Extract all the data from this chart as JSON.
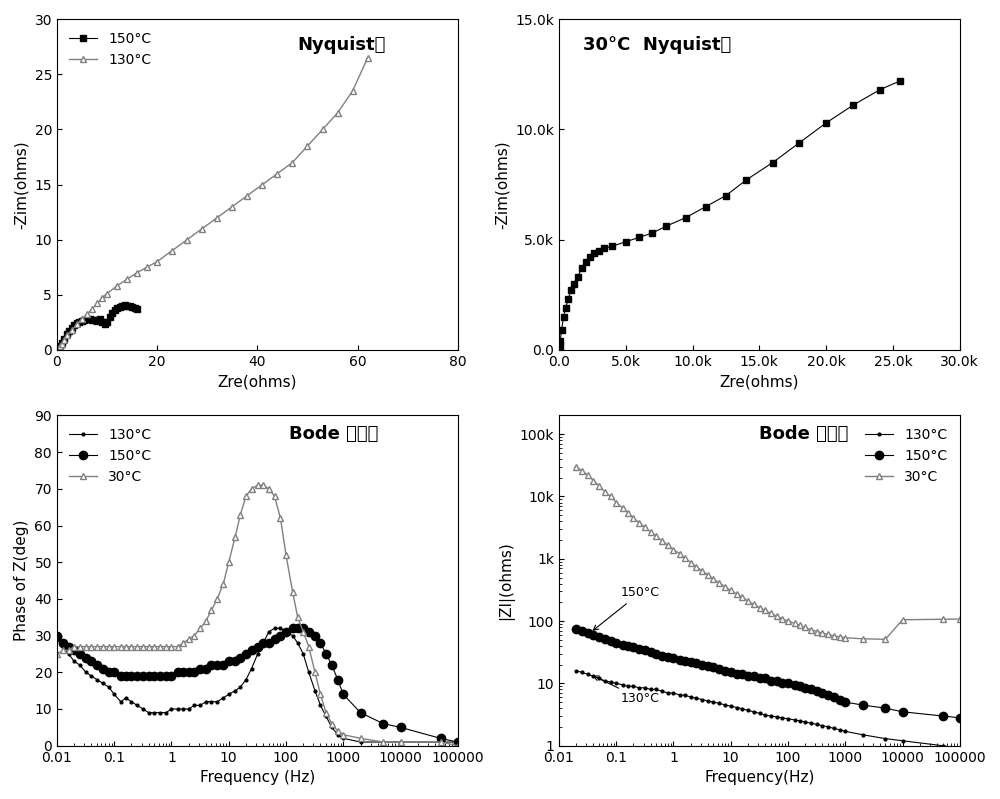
{
  "plot1": {
    "title": "Nyquist图",
    "xlabel": "Zre(ohms)",
    "ylabel": "-Zim(ohms)",
    "xlim": [
      0,
      80
    ],
    "ylim": [
      0,
      30
    ],
    "legend_150": "150°C",
    "legend_130": "130°C",
    "data_150_zre": [
      0.3,
      0.6,
      1.0,
      1.5,
      2.0,
      2.5,
      3.0,
      3.5,
      4.0,
      4.5,
      5.0,
      5.5,
      6.0,
      6.5,
      7.0,
      7.5,
      8.0,
      8.5,
      9.0,
      9.5,
      10.0,
      10.5,
      11.0,
      11.5,
      12.0,
      12.5,
      13.0,
      13.5,
      14.0,
      14.5,
      15.0,
      15.5,
      16.0
    ],
    "data_150_zim": [
      0.1,
      0.3,
      0.6,
      1.0,
      1.4,
      1.7,
      2.0,
      2.2,
      2.4,
      2.5,
      2.6,
      2.7,
      2.8,
      2.8,
      2.7,
      2.7,
      2.6,
      2.8,
      2.5,
      2.3,
      2.5,
      3.0,
      3.3,
      3.6,
      3.8,
      3.9,
      4.0,
      4.1,
      4.0,
      4.0,
      3.9,
      3.8,
      3.7
    ],
    "data_130_zre": [
      0.3,
      0.6,
      1.0,
      1.5,
      2.0,
      3.0,
      4.0,
      5.0,
      6.0,
      7.0,
      8.0,
      9.0,
      10.0,
      12.0,
      14.0,
      16.0,
      18.0,
      20.0,
      23.0,
      26.0,
      29.0,
      32.0,
      35.0,
      38.0,
      41.0,
      44.0,
      47.0,
      50.0,
      53.0,
      56.0,
      59.0,
      62.0
    ],
    "data_130_zim": [
      0.1,
      0.3,
      0.5,
      0.9,
      1.3,
      1.8,
      2.3,
      2.8,
      3.2,
      3.7,
      4.2,
      4.7,
      5.1,
      5.8,
      6.4,
      7.0,
      7.5,
      8.0,
      9.0,
      10.0,
      11.0,
      12.0,
      13.0,
      14.0,
      15.0,
      16.0,
      17.0,
      18.5,
      20.0,
      21.5,
      23.5,
      26.5
    ]
  },
  "plot2": {
    "title": "30°C  Nyquist图",
    "xlabel": "Zre(ohms)",
    "ylabel": "-Zim(ohms)",
    "xlim": [
      0,
      30000
    ],
    "ylim": [
      0,
      15000
    ],
    "data_zre": [
      30,
      60,
      100,
      200,
      350,
      500,
      700,
      900,
      1100,
      1400,
      1700,
      2000,
      2300,
      2600,
      3000,
      3400,
      4000,
      5000,
      6000,
      7000,
      8000,
      9500,
      11000,
      12500,
      14000,
      16000,
      18000,
      20000,
      22000,
      24000,
      25500
    ],
    "data_zim": [
      50,
      150,
      400,
      900,
      1500,
      1900,
      2300,
      2700,
      3000,
      3300,
      3700,
      4000,
      4200,
      4400,
      4500,
      4600,
      4700,
      4900,
      5100,
      5300,
      5600,
      6000,
      6500,
      7000,
      7700,
      8500,
      9400,
      10300,
      11100,
      11800,
      12200
    ]
  },
  "plot3": {
    "title": "Bode 相位图",
    "xlabel": "Frequency (Hz)",
    "ylabel": "Phase of Z(deg)",
    "ylim": [
      0,
      90
    ],
    "yticks": [
      0,
      10,
      20,
      30,
      40,
      50,
      60,
      70,
      80,
      90
    ],
    "xtick_labels": [
      "0.01",
      "0.1",
      "1",
      "10",
      "100",
      "1000",
      "10000",
      "100000"
    ],
    "xtick_vals": [
      0.01,
      0.1,
      1,
      10,
      100,
      1000,
      10000,
      100000
    ],
    "legend_130": "130°C",
    "legend_150": "150°C",
    "legend_30": "30°C",
    "freq_130": [
      0.01,
      0.013,
      0.016,
      0.02,
      0.025,
      0.032,
      0.04,
      0.05,
      0.063,
      0.08,
      0.1,
      0.13,
      0.16,
      0.2,
      0.25,
      0.32,
      0.4,
      0.5,
      0.63,
      0.8,
      1.0,
      1.3,
      1.6,
      2.0,
      2.5,
      3.2,
      4.0,
      5.0,
      6.3,
      8.0,
      10,
      13,
      16,
      20,
      25,
      32,
      40,
      50,
      63,
      80,
      100,
      130,
      160,
      200,
      250,
      320,
      400,
      500,
      630,
      800,
      1000,
      2000,
      5000,
      10000,
      50000,
      100000
    ],
    "phase_130": [
      29,
      27,
      25,
      23,
      22,
      20,
      19,
      18,
      17,
      16,
      14,
      12,
      13,
      12,
      11,
      10,
      9,
      9,
      9,
      9,
      10,
      10,
      10,
      10,
      11,
      11,
      12,
      12,
      12,
      13,
      14,
      15,
      16,
      18,
      21,
      25,
      28,
      31,
      32,
      32,
      31,
      30,
      28,
      25,
      20,
      15,
      11,
      8,
      5,
      3,
      2,
      1,
      1,
      1,
      1,
      1
    ],
    "freq_150": [
      0.01,
      0.013,
      0.016,
      0.02,
      0.025,
      0.032,
      0.04,
      0.05,
      0.063,
      0.08,
      0.1,
      0.13,
      0.16,
      0.2,
      0.25,
      0.32,
      0.4,
      0.5,
      0.63,
      0.8,
      1.0,
      1.3,
      1.6,
      2.0,
      2.5,
      3.2,
      4.0,
      5.0,
      6.3,
      8.0,
      10,
      13,
      16,
      20,
      25,
      32,
      40,
      50,
      63,
      80,
      100,
      130,
      160,
      200,
      250,
      320,
      400,
      500,
      630,
      800,
      1000,
      2000,
      5000,
      10000,
      50000,
      100000
    ],
    "phase_150": [
      30,
      28,
      27,
      26,
      25,
      24,
      23,
      22,
      21,
      20,
      20,
      19,
      19,
      19,
      19,
      19,
      19,
      19,
      19,
      19,
      19,
      20,
      20,
      20,
      20,
      21,
      21,
      22,
      22,
      22,
      23,
      23,
      24,
      25,
      26,
      27,
      28,
      28,
      29,
      30,
      31,
      32,
      32,
      32,
      31,
      30,
      28,
      25,
      22,
      18,
      14,
      9,
      6,
      5,
      2,
      1
    ],
    "freq_30": [
      0.01,
      0.013,
      0.016,
      0.02,
      0.025,
      0.032,
      0.04,
      0.05,
      0.063,
      0.08,
      0.1,
      0.13,
      0.16,
      0.2,
      0.25,
      0.32,
      0.4,
      0.5,
      0.63,
      0.8,
      1.0,
      1.3,
      1.6,
      2.0,
      2.5,
      3.2,
      4.0,
      5.0,
      6.3,
      8.0,
      10,
      13,
      16,
      20,
      25,
      32,
      40,
      50,
      63,
      80,
      100,
      130,
      160,
      200,
      250,
      320,
      400,
      500,
      630,
      800,
      1000,
      2000,
      5000,
      10000,
      50000,
      100000
    ],
    "phase_30": [
      25,
      26,
      26,
      27,
      27,
      27,
      27,
      27,
      27,
      27,
      27,
      27,
      27,
      27,
      27,
      27,
      27,
      27,
      27,
      27,
      27,
      27,
      28,
      29,
      30,
      32,
      34,
      37,
      40,
      44,
      50,
      57,
      63,
      68,
      70,
      71,
      71,
      70,
      68,
      62,
      52,
      42,
      35,
      31,
      27,
      20,
      14,
      9,
      6,
      4,
      3,
      2,
      1,
      1,
      1,
      0
    ]
  },
  "plot4": {
    "title": "Bode 模值图",
    "xlabel": "Frequency(Hz)",
    "ylabel": "|ZI|(ohms)",
    "legend_130": "130°C",
    "legend_150": "150°C",
    "legend_30": "30°C",
    "annotation_150": "150°C",
    "annotation_130": "130°C",
    "freq_130": [
      0.02,
      0.025,
      0.032,
      0.04,
      0.05,
      0.063,
      0.08,
      0.1,
      0.13,
      0.16,
      0.2,
      0.25,
      0.32,
      0.4,
      0.5,
      0.63,
      0.8,
      1.0,
      1.3,
      1.6,
      2.0,
      2.5,
      3.2,
      4.0,
      5.0,
      6.3,
      8.0,
      10,
      13,
      16,
      20,
      25,
      32,
      40,
      50,
      63,
      80,
      100,
      130,
      160,
      200,
      250,
      320,
      400,
      500,
      630,
      800,
      1000,
      2000,
      5000,
      10000,
      50000,
      100000
    ],
    "izl_130": [
      16,
      15,
      14,
      13,
      12,
      11,
      10.5,
      10,
      9.5,
      9,
      9,
      8.5,
      8.5,
      8,
      8,
      7.5,
      7,
      7,
      6.5,
      6.5,
      6,
      5.8,
      5.5,
      5.2,
      5,
      4.8,
      4.5,
      4.3,
      4.1,
      3.9,
      3.7,
      3.5,
      3.3,
      3.1,
      3.0,
      2.9,
      2.8,
      2.7,
      2.6,
      2.5,
      2.4,
      2.3,
      2.2,
      2.1,
      2.0,
      1.9,
      1.8,
      1.7,
      1.5,
      1.3,
      1.2,
      1.0,
      0.9
    ],
    "freq_150": [
      0.02,
      0.025,
      0.032,
      0.04,
      0.05,
      0.063,
      0.08,
      0.1,
      0.13,
      0.16,
      0.2,
      0.25,
      0.32,
      0.4,
      0.5,
      0.63,
      0.8,
      1.0,
      1.3,
      1.6,
      2.0,
      2.5,
      3.2,
      4.0,
      5.0,
      6.3,
      8.0,
      10,
      13,
      16,
      20,
      25,
      32,
      40,
      50,
      63,
      80,
      100,
      130,
      160,
      200,
      250,
      320,
      400,
      500,
      630,
      800,
      1000,
      2000,
      5000,
      10000,
      50000,
      100000
    ],
    "izl_150": [
      75,
      70,
      65,
      60,
      55,
      52,
      48,
      45,
      42,
      40,
      38,
      36,
      34,
      32,
      30,
      28,
      27,
      26,
      24,
      23,
      22,
      21,
      20,
      19,
      18,
      17,
      16,
      15,
      14,
      14,
      13,
      13,
      12,
      12,
      11,
      11,
      10,
      10,
      9.5,
      9,
      8.5,
      8,
      7.5,
      7,
      6.5,
      6,
      5.5,
      5,
      4.5,
      4,
      3.5,
      3.0,
      2.8
    ],
    "freq_30": [
      0.02,
      0.025,
      0.032,
      0.04,
      0.05,
      0.063,
      0.08,
      0.1,
      0.13,
      0.16,
      0.2,
      0.25,
      0.32,
      0.4,
      0.5,
      0.63,
      0.8,
      1.0,
      1.3,
      1.6,
      2.0,
      2.5,
      3.2,
      4.0,
      5.0,
      6.3,
      8.0,
      10,
      13,
      16,
      20,
      25,
      32,
      40,
      50,
      63,
      80,
      100,
      130,
      160,
      200,
      250,
      320,
      400,
      500,
      630,
      800,
      1000,
      2000,
      5000,
      10000,
      50000,
      100000
    ],
    "izl_30": [
      30000,
      26000,
      22000,
      18000,
      15000,
      12000,
      10000,
      8000,
      6500,
      5500,
      4500,
      3800,
      3200,
      2700,
      2300,
      1950,
      1650,
      1400,
      1200,
      1020,
      870,
      740,
      640,
      550,
      470,
      410,
      355,
      310,
      270,
      240,
      210,
      185,
      165,
      148,
      133,
      120,
      109,
      100,
      92,
      85,
      79,
      73,
      68,
      64,
      61,
      58,
      56,
      54,
      52,
      51,
      105,
      107,
      108
    ]
  }
}
